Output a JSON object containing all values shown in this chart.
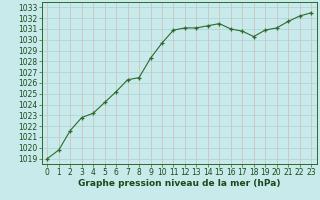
{
  "hours": [
    0,
    1,
    2,
    3,
    4,
    5,
    6,
    7,
    8,
    9,
    10,
    11,
    12,
    13,
    14,
    15,
    16,
    17,
    18,
    19,
    20,
    21,
    22,
    23
  ],
  "pressure": [
    1019.0,
    1019.8,
    1021.6,
    1022.8,
    1023.2,
    1024.2,
    1025.2,
    1026.3,
    1026.5,
    1028.3,
    1029.7,
    1030.9,
    1031.1,
    1031.1,
    1031.3,
    1031.5,
    1031.0,
    1030.8,
    1030.3,
    1030.9,
    1031.1,
    1031.7,
    1032.2,
    1032.5
  ],
  "line_color": "#2d6a2d",
  "marker_color": "#2d6a2d",
  "bg_color": "#c8eaea",
  "grid_color_x": "#d4b8b8",
  "grid_color_y": "#aad4d4",
  "ylabel_ticks": [
    1019,
    1020,
    1021,
    1022,
    1023,
    1024,
    1025,
    1026,
    1027,
    1028,
    1029,
    1030,
    1031,
    1032,
    1033
  ],
  "xlabel": "Graphe pression niveau de la mer (hPa)",
  "ylim": [
    1018.5,
    1033.5
  ],
  "xlim": [
    -0.5,
    23.5
  ],
  "label_fontsize": 6.5,
  "tick_fontsize": 5.5
}
